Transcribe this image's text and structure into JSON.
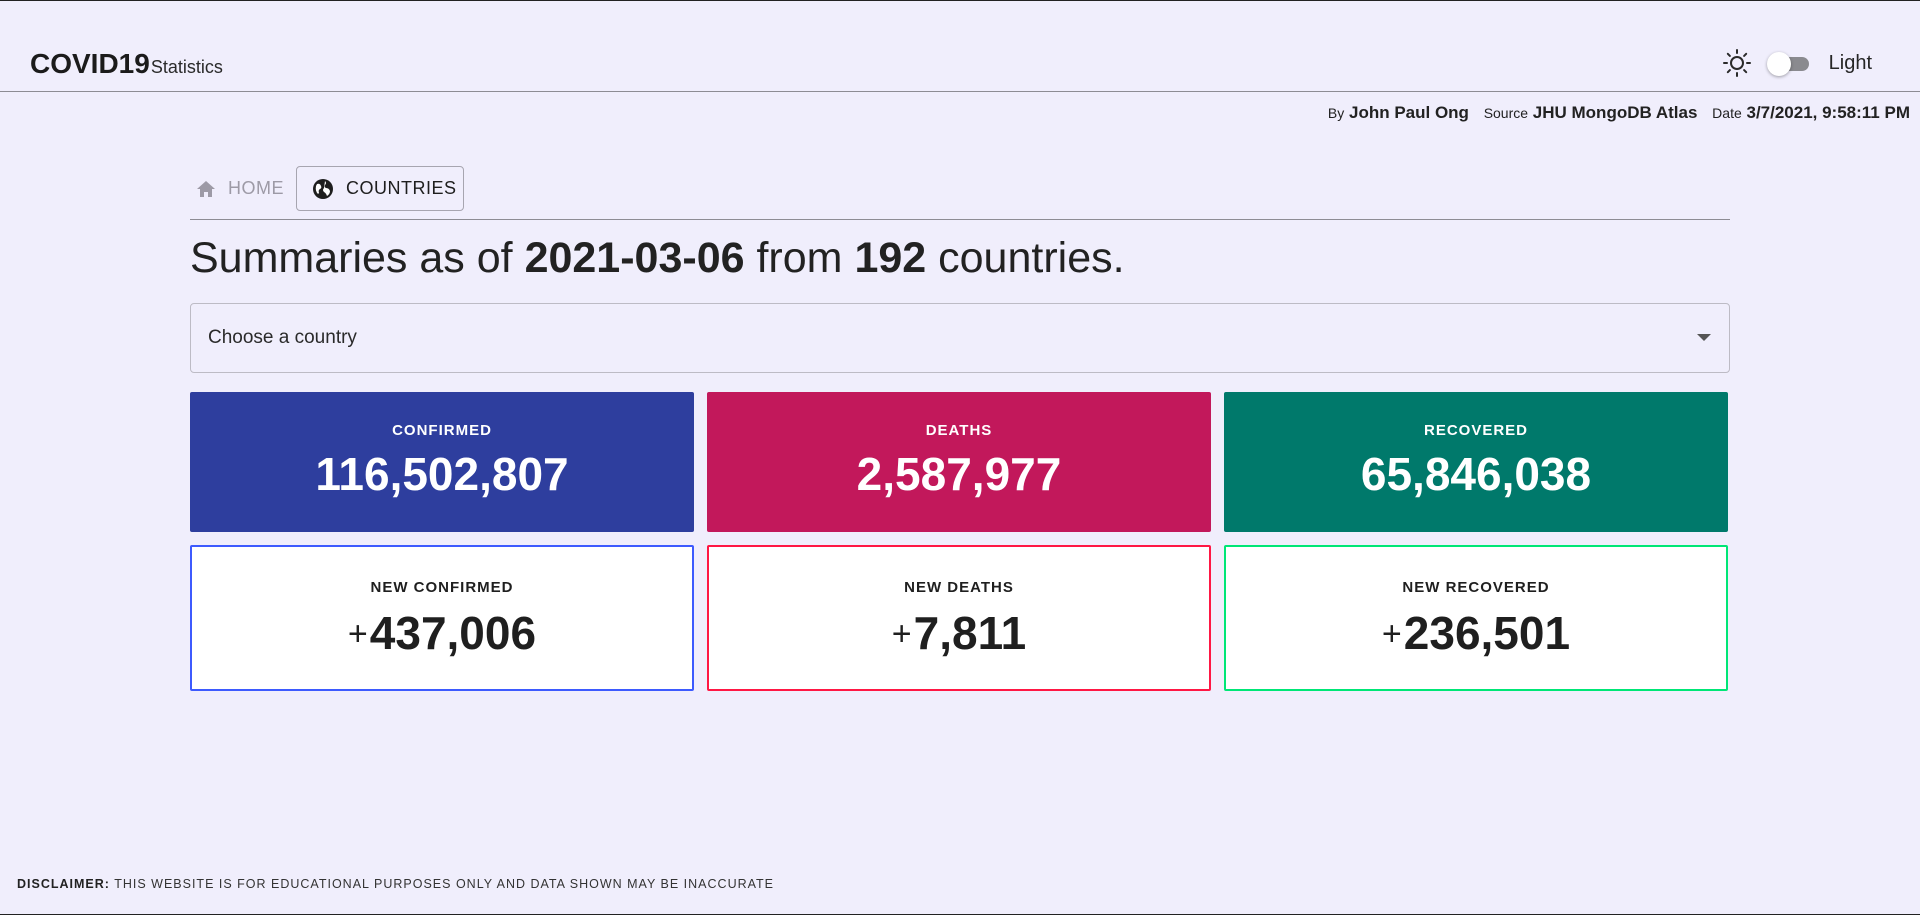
{
  "header": {
    "brand_title": "COVID19",
    "brand_subtitle": "Statistics",
    "theme_icon": "sun-icon",
    "theme_label": "Light",
    "theme_toggle_on": false
  },
  "byline": {
    "by_key": "By",
    "by_value": "John Paul Ong",
    "source_key": "Source",
    "source_value": "JHU MongoDB Atlas",
    "date_key": "Date",
    "date_value": "3/7/2021, 9:58:11 PM"
  },
  "breadcrumb": {
    "home_label": "HOME",
    "home_icon": "home-icon",
    "countries_label": "COUNTRIES",
    "countries_icon": "globe-icon"
  },
  "summary": {
    "prefix": "Summaries as of ",
    "date": "2021-03-06",
    "middle": " from ",
    "count": "192",
    "suffix": " countries."
  },
  "country_select": {
    "placeholder": "Choose a country"
  },
  "cards": {
    "confirmed": {
      "label": "CONFIRMED",
      "value": "116,502,807",
      "color": "#2e3e9e"
    },
    "deaths": {
      "label": "DEATHS",
      "value": "2,587,977",
      "color": "#c2185b"
    },
    "recovered": {
      "label": "RECOVERED",
      "value": "65,846,038",
      "color": "#00796b"
    },
    "new_confirmed": {
      "label": "NEW CONFIRMED",
      "sign": "+",
      "value": "437,006",
      "border": "#3d5afe"
    },
    "new_deaths": {
      "label": "NEW DEATHS",
      "sign": "+",
      "value": "7,811",
      "border": "#ff1744"
    },
    "new_recovered": {
      "label": "NEW RECOVERED",
      "sign": "+",
      "value": "236,501",
      "border": "#00e676"
    }
  },
  "footer": {
    "disclaimer_label": "DISCLAIMER:",
    "disclaimer_text": " THIS WEBSITE IS FOR EDUCATIONAL PURPOSES ONLY AND DATA SHOWN MAY BE INACCURATE"
  }
}
